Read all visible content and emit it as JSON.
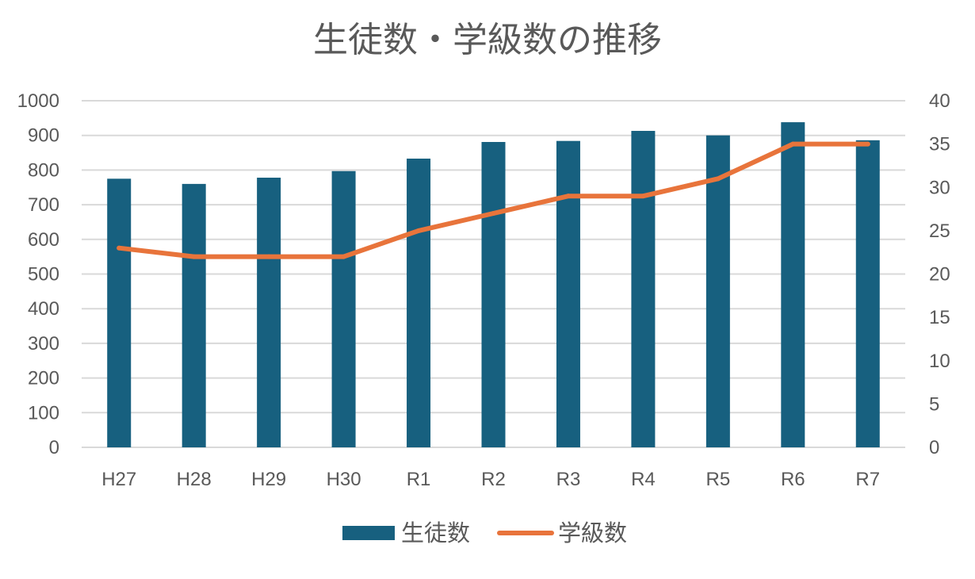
{
  "chart_data": {
    "type": "bar",
    "title": "生徒数・学級数の推移",
    "categories": [
      "H27",
      "H28",
      "H29",
      "H30",
      "R1",
      "R2",
      "R3",
      "R4",
      "R5",
      "R6",
      "R7"
    ],
    "series": [
      {
        "name": "生徒数",
        "type": "bar",
        "axis": "left",
        "color": "#17607f",
        "values": [
          775,
          760,
          778,
          797,
          833,
          881,
          884,
          913,
          900,
          938,
          886
        ]
      },
      {
        "name": "学級数",
        "type": "line",
        "axis": "right",
        "color": "#e8743b",
        "values": [
          23,
          22,
          22,
          22,
          25,
          27,
          29,
          29,
          31,
          35,
          35
        ]
      }
    ],
    "ylim": [
      0,
      1000
    ],
    "y_ticks": [
      0,
      100,
      200,
      300,
      400,
      500,
      600,
      700,
      800,
      900,
      1000
    ],
    "y2lim": [
      0,
      40
    ],
    "y2_ticks": [
      0,
      5,
      10,
      15,
      20,
      25,
      30,
      35,
      40
    ],
    "grid": true,
    "gridline_color": "#d9d9d9",
    "legend_position": "bottom"
  }
}
